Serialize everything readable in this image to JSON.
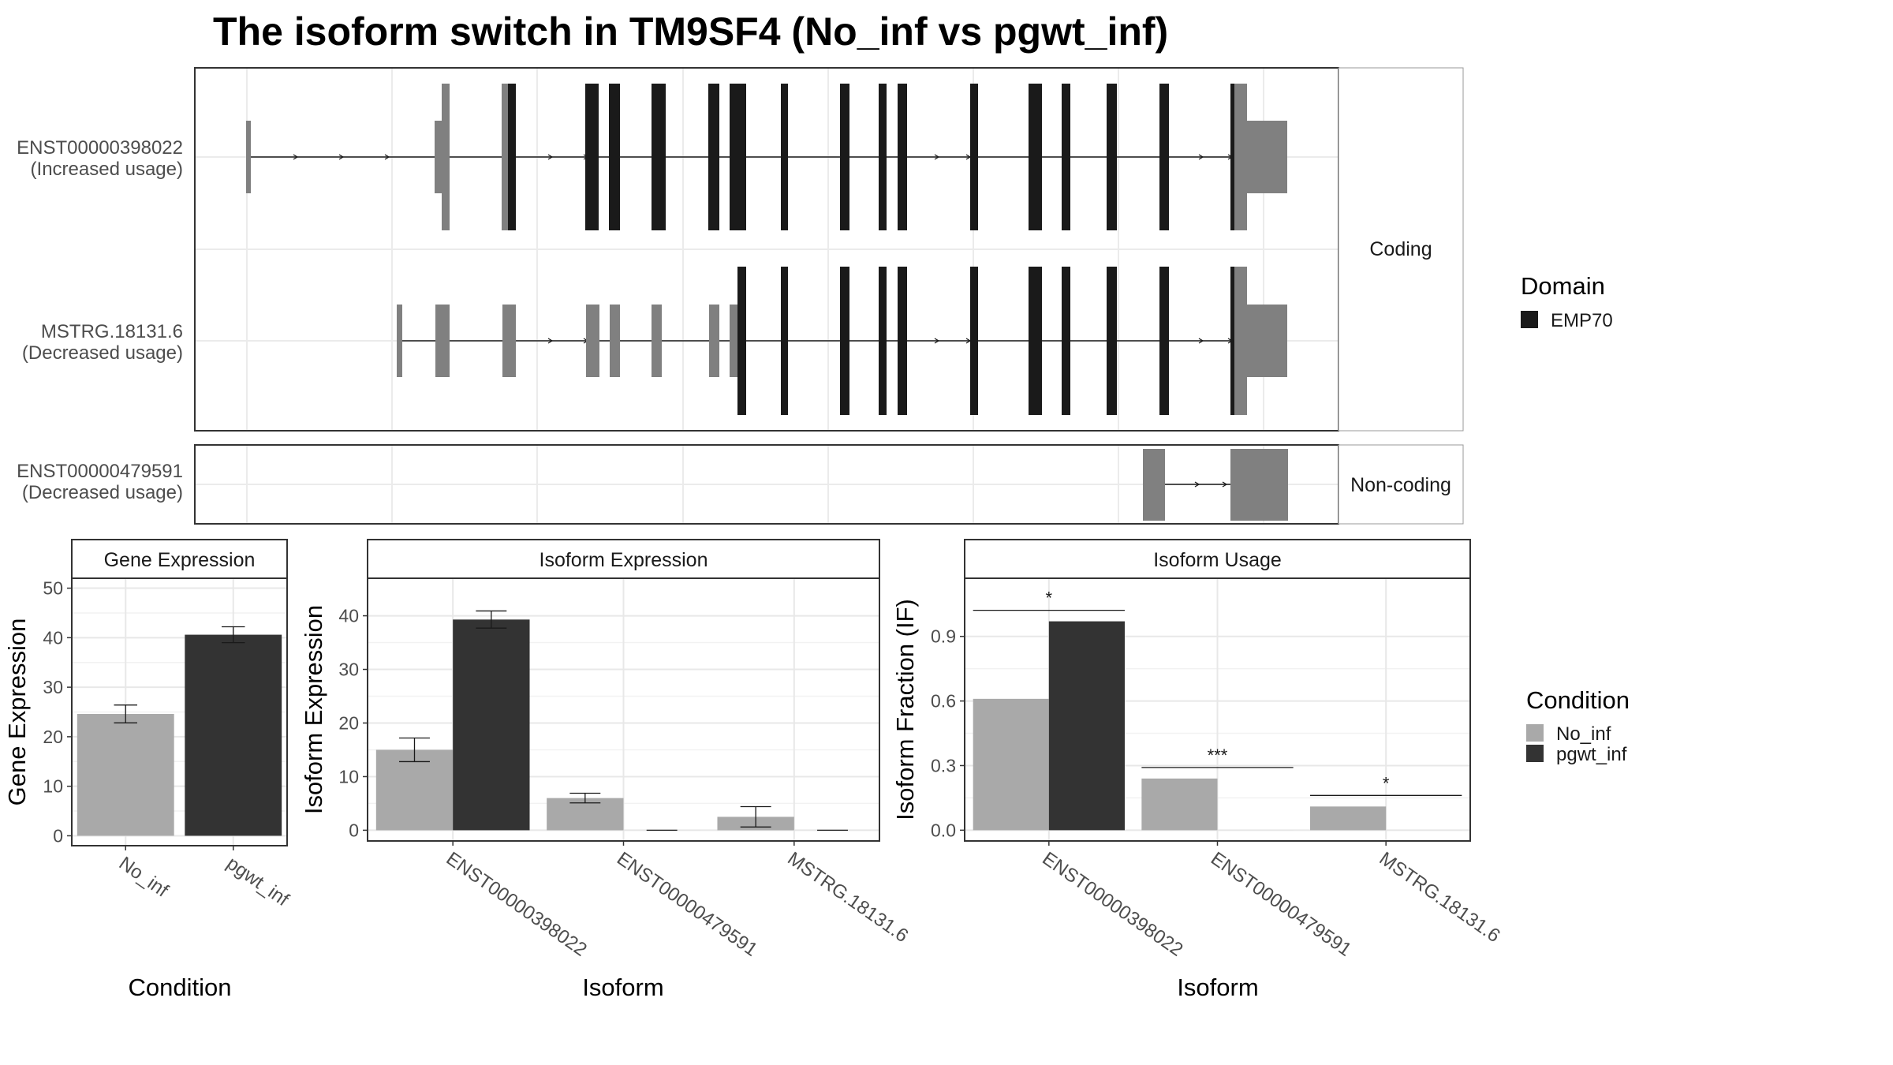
{
  "title": "The isoform switch in TM9SF4 (No_inf vs pgwt_inf)",
  "colors": {
    "condition_light": "#A9A9A9",
    "condition_dark": "#333333",
    "domain": "#1A1A1A",
    "utr": "#808080"
  },
  "structure": {
    "facets": [
      "Coding",
      "Non-coding"
    ],
    "transcripts": [
      {
        "id": "ENST00000398022",
        "usage": "(Increased usage)"
      },
      {
        "id": "MSTRG.18131.6",
        "usage": "(Decreased usage)"
      },
      {
        "id": "ENST00000479591",
        "usage": "(Decreased usage)"
      }
    ],
    "legend": {
      "title": "Domain",
      "items": [
        "EMP70"
      ]
    }
  },
  "chart_data": [
    {
      "type": "bar",
      "title": "Gene Expression",
      "xlabel": "Condition",
      "ylabel": "Gene Expression",
      "categories": [
        "No_inf",
        "pgwt_inf"
      ],
      "values": [
        24.6,
        40.6
      ],
      "errors": [
        1.8,
        1.6
      ],
      "ylim": [
        -2,
        52
      ],
      "yticks": [
        0,
        10,
        20,
        30,
        40,
        50
      ]
    },
    {
      "type": "bar",
      "title": "Isoform Expression",
      "xlabel": "Isoform",
      "ylabel": "Isoform Expression",
      "categories": [
        "ENST00000398022",
        "ENST00000479591",
        "MSTRG.18131.6"
      ],
      "series": [
        {
          "name": "No_inf",
          "values": [
            15.0,
            6.0,
            2.5
          ],
          "errors": [
            2.2,
            0.9,
            1.9
          ]
        },
        {
          "name": "pgwt_inf",
          "values": [
            39.3,
            0,
            0
          ],
          "errors": [
            1.6,
            0,
            0
          ]
        }
      ],
      "ylim": [
        -2,
        47
      ],
      "yticks": [
        0,
        10,
        20,
        30,
        40
      ]
    },
    {
      "type": "bar",
      "title": "Isoform Usage",
      "xlabel": "Isoform",
      "ylabel": "Isoform Fraction (IF)",
      "categories": [
        "ENST00000398022",
        "ENST00000479591",
        "MSTRG.18131.6"
      ],
      "series": [
        {
          "name": "No_inf",
          "values": [
            0.61,
            0.24,
            0.11
          ]
        },
        {
          "name": "pgwt_inf",
          "values": [
            0.97,
            0,
            0
          ]
        }
      ],
      "significance": [
        "*",
        "***",
        "*"
      ],
      "ylim": [
        -0.05,
        1.17
      ],
      "yticks": [
        0.0,
        0.3,
        0.6,
        0.9
      ],
      "ytick_labels": [
        "0.0",
        "0.3",
        "0.6",
        "0.9"
      ]
    }
  ],
  "condition_legend": {
    "title": "Condition",
    "items": [
      "No_inf",
      "pgwt_inf"
    ]
  }
}
